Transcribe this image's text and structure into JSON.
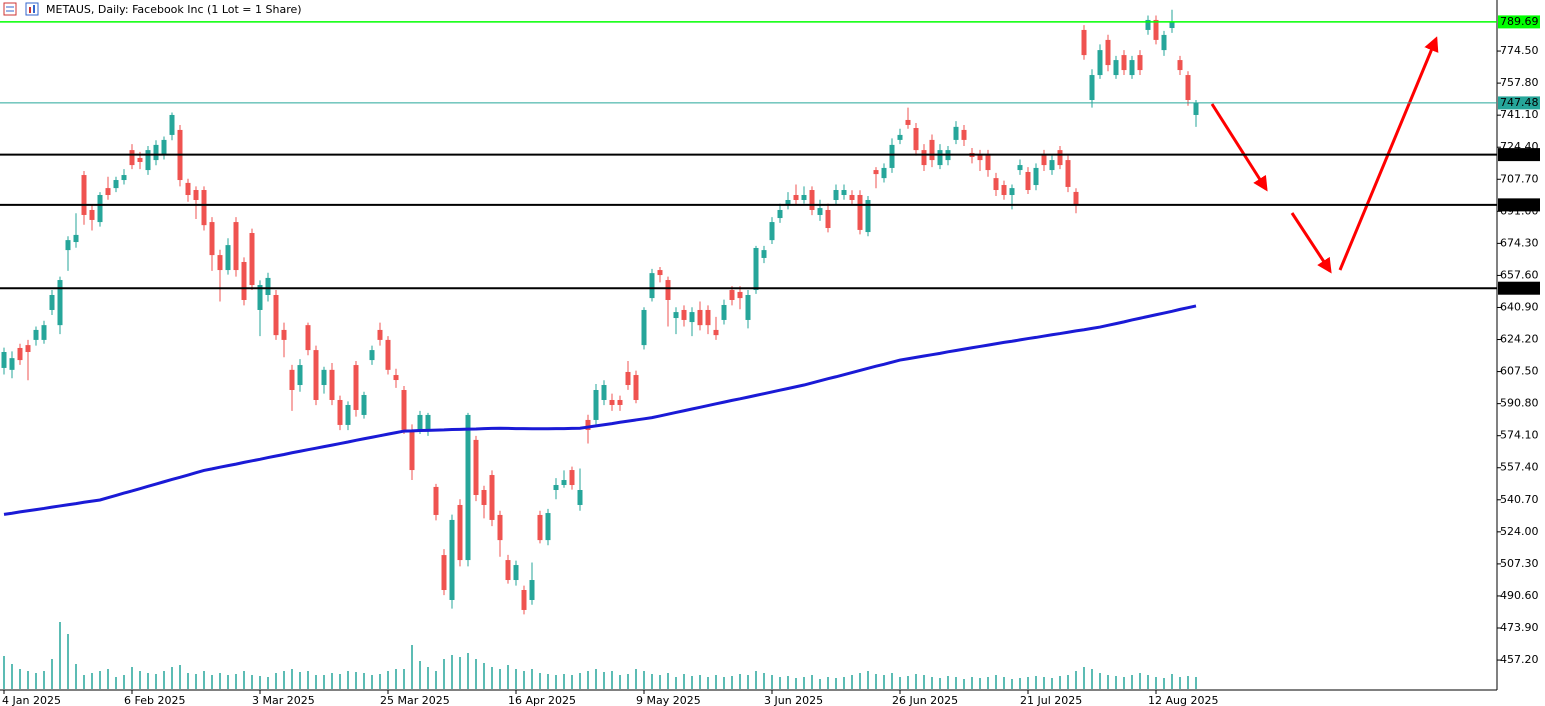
{
  "chart_data": {
    "type": "candlestick",
    "title": "METAUS, Daily:  Facebook Inc (1 Lot = 1 Share)",
    "categories": [
      "4 Jan 2025",
      null,
      null,
      null,
      null,
      null,
      null,
      null,
      null,
      null,
      null,
      null,
      null,
      null,
      null,
      null,
      "6 Feb 2025",
      null,
      null,
      null,
      null,
      null,
      null,
      null,
      null,
      null,
      null,
      null,
      null,
      null,
      null,
      null,
      "3 Mar 2025",
      null,
      null,
      null,
      null,
      null,
      null,
      null,
      null,
      null,
      null,
      null,
      null,
      null,
      null,
      null,
      "25 Mar 2025",
      null,
      null,
      null,
      null,
      null,
      null,
      null,
      null,
      null,
      null,
      null,
      null,
      null,
      null,
      null,
      "16 Apr 2025",
      null,
      null,
      null,
      null,
      null,
      null,
      null,
      null,
      null,
      null,
      null,
      null,
      null,
      null,
      null,
      "9 May 2025",
      null,
      null,
      null,
      null,
      null,
      null,
      null,
      null,
      null,
      null,
      null,
      null,
      null,
      null,
      null,
      "3 Jun 2025",
      null,
      null,
      null,
      null,
      null,
      null,
      null,
      null,
      null,
      null,
      null,
      null,
      null,
      null,
      null,
      "26 Jun 2025",
      null,
      null,
      null,
      null,
      null,
      null,
      null,
      null,
      null,
      null,
      null,
      null,
      null,
      null,
      null,
      "21 Jul 2025",
      null,
      null,
      null,
      null,
      null,
      null,
      null,
      null,
      null,
      null,
      null,
      null,
      null,
      null,
      null,
      "12 Aug 2025",
      null,
      null,
      null,
      null,
      null
    ],
    "open": [
      609.4,
      608.4,
      619.8,
      621.3,
      624.0,
      624.0,
      639.6,
      631.7,
      670.8,
      675.0,
      709.9,
      691.7,
      685.4,
      703.1,
      703.1,
      707.3,
      722.9,
      718.8,
      712.5,
      717.7,
      720.3,
      730.8,
      733.4,
      705.8,
      702.1,
      702.1,
      685.4,
      668.2,
      660.4,
      685.4,
      664.6,
      679.7,
      639.6,
      647.4,
      647.4,
      629.2,
      608.4,
      600.5,
      631.7,
      618.7,
      600.5,
      608.4,
      592.7,
      579.7,
      610.9,
      584.9,
      613.5,
      629.2,
      624.0,
      605.7,
      597.9,
      577.1,
      577.1,
      577.1,
      547.4,
      511.9,
      488.5,
      538.0,
      509.3,
      571.9,
      545.8,
      553.6,
      532.8,
      509.3,
      498.9,
      493.7,
      488.5,
      532.8,
      519.7,
      545.8,
      548.4,
      556.2,
      538.0,
      582.3,
      582.3,
      592.7,
      592.7,
      592.7,
      607.3,
      605.7,
      621.3,
      645.8,
      660.4,
      655.2,
      635.4,
      639.6,
      633.3,
      639.6,
      639.6,
      629.2,
      634.4,
      650.0,
      649.0,
      634.4,
      650.0,
      666.7,
      676.0,
      687.5,
      694.3,
      699.5,
      696.9,
      702.1,
      689.1,
      691.7,
      696.9,
      699.5,
      699.5,
      699.5,
      680.2,
      712.5,
      708.3,
      713.6,
      728.2,
      738.6,
      734.4,
      722.9,
      728.2,
      715.1,
      717.7,
      728.2,
      733.4,
      721.4,
      720.3,
      720.3,
      708.3,
      704.7,
      699.5,
      712.5,
      711.5,
      704.7,
      720.3,
      712.5,
      722.9,
      717.7,
      701.1,
      785.5,
      749.0,
      762.0,
      780.3,
      762.0,
      772.4,
      762.0,
      772.4,
      785.5,
      790.7,
      775.0,
      786.5,
      769.8,
      762.0,
      741.2
    ],
    "high": [
      620,
      618,
      622,
      624,
      631,
      634,
      650,
      657,
      678,
      690,
      712,
      694,
      701,
      709,
      709,
      713,
      726,
      722,
      725,
      728,
      730,
      742.5,
      736,
      708,
      704,
      704,
      688,
      671,
      677,
      688,
      667,
      682,
      655,
      659,
      650,
      633,
      611,
      614,
      633,
      621,
      610,
      612,
      595,
      592,
      613,
      597,
      621,
      633,
      626,
      609,
      600,
      580,
      587,
      586,
      549,
      515,
      533,
      541,
      586,
      574,
      548,
      556,
      535,
      512,
      509,
      496,
      508,
      535,
      536,
      552,
      556,
      558,
      557,
      585,
      601,
      603,
      596,
      595,
      613,
      608,
      641,
      661,
      662,
      657,
      641,
      642,
      641,
      644,
      642,
      636,
      645,
      652,
      652,
      650,
      673,
      673,
      688,
      695,
      701,
      705,
      704,
      704,
      697,
      695,
      705,
      705,
      702,
      702,
      699,
      714,
      716,
      729,
      734,
      745,
      737,
      726,
      731,
      726,
      725,
      738,
      736,
      724,
      723,
      723,
      711,
      707,
      705,
      718,
      714,
      716,
      723,
      720,
      725,
      720,
      703,
      788,
      765,
      778,
      783,
      772,
      775,
      772,
      775,
      793,
      793,
      785,
      796,
      772,
      764,
      749
    ],
    "low": [
      606,
      604,
      611,
      603,
      621,
      622,
      637,
      627,
      660,
      672,
      684,
      681,
      683,
      697,
      701,
      705,
      713,
      713,
      710,
      715,
      718,
      728,
      704,
      696,
      687,
      681,
      660,
      644,
      658,
      657,
      642,
      650,
      626,
      644,
      624,
      615,
      587,
      597,
      616,
      590,
      596,
      590,
      577,
      577,
      584,
      583,
      611,
      621,
      606,
      599,
      575,
      551,
      575,
      574,
      530,
      491,
      484,
      506,
      506,
      540,
      531,
      527,
      511,
      497,
      496,
      481,
      486,
      518,
      517,
      541,
      547,
      546,
      535,
      570,
      580,
      590,
      587,
      587,
      598,
      591,
      619,
      644,
      654,
      631,
      627,
      631,
      626,
      629,
      627,
      624,
      632,
      642,
      640,
      630,
      648,
      664,
      674,
      685,
      692,
      694,
      695,
      689,
      686,
      680,
      694,
      697,
      694,
      679,
      678,
      703,
      706,
      711,
      726,
      734,
      720,
      712,
      714,
      713,
      715,
      726,
      725,
      716,
      712,
      709,
      699,
      697,
      692,
      710,
      700,
      702,
      712,
      710,
      713,
      701,
      690,
      770,
      745,
      760,
      764,
      760,
      762,
      760,
      762,
      783,
      778,
      772,
      784,
      762,
      746,
      735
    ],
    "close": [
      617.7,
      614.5,
      613.5,
      617.7,
      629.2,
      631.7,
      647.4,
      655.2,
      676.0,
      678.7,
      689.1,
      686.5,
      699.5,
      699.5,
      707.3,
      709.9,
      715.1,
      716.7,
      722.9,
      725.6,
      728.2,
      741.2,
      707.3,
      699.5,
      696.9,
      683.8,
      668.2,
      660.4,
      673.4,
      660.4,
      644.8,
      652.6,
      652.6,
      656.3,
      626.5,
      624.0,
      597.9,
      610.9,
      618.7,
      592.7,
      608.4,
      592.7,
      579.7,
      590.1,
      587.5,
      595.3,
      618.7,
      624.0,
      608.4,
      603.1,
      577.1,
      556.2,
      584.9,
      584.9,
      532.8,
      493.7,
      530.2,
      509.3,
      584.9,
      543.2,
      538.0,
      530.2,
      519.7,
      498.9,
      506.7,
      483.3,
      498.9,
      519.7,
      533.8,
      548.4,
      551.0,
      548.4,
      545.8,
      577.1,
      597.9,
      600.5,
      590.1,
      590.1,
      600.5,
      592.7,
      639.6,
      658.8,
      657.8,
      644.8,
      638.5,
      634.4,
      638.5,
      631.7,
      631.7,
      626.5,
      642.2,
      644.8,
      645.8,
      647.4,
      671.9,
      670.8,
      685.4,
      691.7,
      696.9,
      696.9,
      699.5,
      691.7,
      692.7,
      682.3,
      702.1,
      702.1,
      696.9,
      681.3,
      696.9,
      710.4,
      713.6,
      725.6,
      730.8,
      736.0,
      722.9,
      715.1,
      717.7,
      722.9,
      722.9,
      735.0,
      728.2,
      719.3,
      717.7,
      712.5,
      702.1,
      699.5,
      703.1,
      715.1,
      702.1,
      713.6,
      715.1,
      717.7,
      715.1,
      703.7,
      694.3,
      772.4,
      762.0,
      775.0,
      767.2,
      769.8,
      764.6,
      769.8,
      764.6,
      790.7,
      780.3,
      782.9,
      789.6,
      764.6,
      749.0,
      747.48
    ],
    "up_color": "#26a69a",
    "down_color": "#ef5350",
    "volume": [
      33,
      25,
      20,
      18,
      16,
      18,
      30,
      67,
      55,
      25,
      14,
      16,
      18,
      20,
      12,
      14,
      22,
      18,
      16,
      15,
      18,
      22,
      24,
      16,
      15,
      18,
      14,
      16,
      14,
      15,
      18,
      14,
      13,
      12,
      16,
      18,
      20,
      17,
      18,
      14,
      14,
      16,
      15,
      18,
      17,
      16,
      14,
      15,
      18,
      20,
      20,
      44,
      28,
      22,
      18,
      30,
      34,
      32,
      36,
      30,
      26,
      22,
      20,
      24,
      20,
      18,
      20,
      16,
      15,
      14,
      15,
      14,
      16,
      18,
      20,
      17,
      18,
      14,
      15,
      20,
      18,
      15,
      14,
      16,
      12,
      15,
      13,
      14,
      12,
      14,
      12,
      13,
      15,
      14,
      18,
      16,
      14,
      12,
      13,
      11,
      12,
      14,
      10,
      12,
      11,
      12,
      14,
      16,
      18,
      15,
      14,
      16,
      12,
      13,
      15,
      14,
      12,
      11,
      13,
      12,
      10,
      12,
      11,
      12,
      14,
      12,
      10,
      11,
      12,
      13,
      12,
      11,
      13,
      14,
      18,
      22,
      20,
      16,
      14,
      13,
      12,
      14,
      16,
      14,
      12,
      11,
      15,
      12,
      13,
      12
    ],
    "volume_color": "#26a69a",
    "moving_average": {
      "color": "#1a1ad6",
      "values": [
        533.1,
        533.7,
        534.4,
        535.0,
        535.6,
        536.2,
        536.9,
        537.5,
        538.1,
        538.7,
        539.4,
        540.0,
        540.6,
        541.8,
        543.0,
        544.2,
        545.3,
        546.5,
        547.7,
        548.9,
        550.1,
        551.3,
        552.4,
        553.6,
        554.8,
        556.0,
        556.8,
        557.7,
        558.5,
        559.3,
        560.2,
        561.0,
        561.8,
        562.7,
        563.5,
        564.3,
        565.2,
        566.0,
        566.8,
        567.6,
        568.4,
        569.2,
        570.0,
        570.8,
        571.7,
        572.5,
        573.3,
        574.1,
        574.9,
        575.7,
        576.5,
        576.6,
        576.8,
        576.9,
        577.0,
        577.1,
        577.3,
        577.4,
        577.5,
        577.6,
        577.8,
        577.9,
        578.0,
        577.9,
        577.8,
        577.8,
        577.7,
        577.7,
        577.7,
        577.8,
        577.8,
        577.9,
        578.0,
        578.6,
        579.2,
        579.8,
        580.4,
        581.1,
        581.7,
        582.3,
        582.9,
        583.5,
        584.4,
        585.3,
        586.2,
        587.1,
        588.0,
        588.9,
        589.8,
        590.7,
        591.6,
        592.5,
        593.3,
        594.2,
        595.1,
        596.0,
        596.9,
        597.8,
        598.7,
        599.6,
        600.5,
        601.6,
        602.7,
        603.8,
        604.8,
        605.9,
        607.0,
        608.1,
        609.2,
        610.3,
        611.3,
        612.4,
        613.5,
        614.2,
        614.9,
        615.6,
        616.3,
        617.0,
        617.8,
        618.5,
        619.2,
        619.9,
        620.6,
        621.3,
        622.0,
        622.7,
        623.3,
        624.0,
        624.7,
        625.3,
        626.0,
        626.7,
        627.3,
        628.0,
        628.7,
        629.3,
        630.0,
        630.7,
        631.6,
        632.5,
        633.4,
        634.4,
        635.3,
        636.2,
        637.1,
        638.0,
        638.9,
        639.9,
        640.8,
        641.7
      ]
    },
    "ylim": [
      441.6,
      801.1
    ],
    "yticks": [
      {
        "value": 457.2,
        "label": "457.20"
      },
      {
        "value": 473.9,
        "label": "473.90"
      },
      {
        "value": 490.6,
        "label": "490.60"
      },
      {
        "value": 507.3,
        "label": "507.30"
      },
      {
        "value": 524.0,
        "label": "524.00"
      },
      {
        "value": 540.7,
        "label": "540.70"
      },
      {
        "value": 557.4,
        "label": "557.40"
      },
      {
        "value": 574.1,
        "label": "574.10"
      },
      {
        "value": 590.8,
        "label": "590.80"
      },
      {
        "value": 607.5,
        "label": "607.50"
      },
      {
        "value": 624.2,
        "label": "624.20"
      },
      {
        "value": 640.9,
        "label": "640.90"
      },
      {
        "value": 657.6,
        "label": "657.60"
      },
      {
        "value": 674.3,
        "label": "674.30"
      },
      {
        "value": 691.0,
        "label": "691.00"
      },
      {
        "value": 707.7,
        "label": "707.70"
      },
      {
        "value": 724.4,
        "label": "724.40"
      },
      {
        "value": 741.1,
        "label": "741.10"
      },
      {
        "value": 757.8,
        "label": "757.80"
      },
      {
        "value": 774.5,
        "label": "774.50"
      }
    ],
    "hlines": [
      {
        "value": 789.69,
        "color": "#00ff00",
        "label_color": "#000000",
        "width": 1.5
      },
      {
        "value": 747.48,
        "color": "#26a69a",
        "label_color": "#ffffff",
        "width": 1
      },
      {
        "value": 720.55,
        "color": "#000000",
        "label_color": "#ffffff",
        "width": 2
      },
      {
        "value": 694.36,
        "color": "#000000",
        "label_color": "#ffffff",
        "width": 2
      },
      {
        "value": 650.94,
        "color": "#000000",
        "label_color": "#ffffff",
        "width": 2
      }
    ]
  }
}
